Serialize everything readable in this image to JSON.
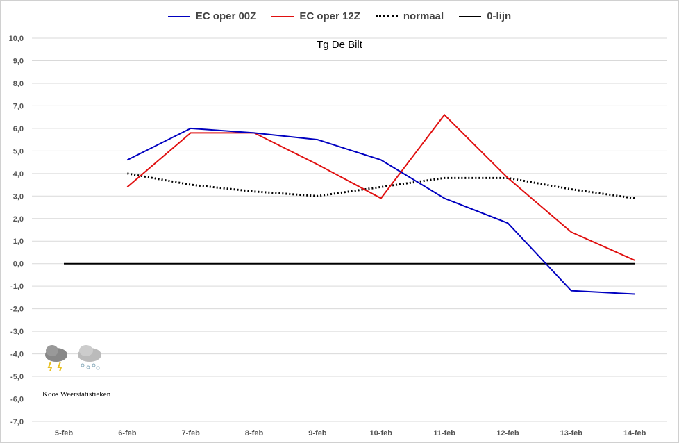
{
  "chart_data": {
    "type": "line",
    "title": "Tg De Bilt",
    "xlabel": "",
    "ylabel": "",
    "categories": [
      "5-feb",
      "6-feb",
      "7-feb",
      "8-feb",
      "9-feb",
      "10-feb",
      "11-feb",
      "12-feb",
      "13-feb",
      "14-feb"
    ],
    "ylim": [
      -7,
      10
    ],
    "yticks": [
      "-7,0",
      "-6,0",
      "-5,0",
      "-4,0",
      "-3,0",
      "-2,0",
      "-1,0",
      "0,0",
      "1,0",
      "2,0",
      "3,0",
      "4,0",
      "5,0",
      "6,0",
      "7,0",
      "8,0",
      "9,0",
      "10,0"
    ],
    "grid": true,
    "legend_position": "top-center",
    "series": [
      {
        "name": "EC oper 00Z",
        "color": "#0000c0",
        "style": "solid",
        "values": [
          null,
          4.6,
          6.0,
          5.8,
          5.5,
          4.6,
          2.9,
          1.8,
          -1.2,
          -1.35
        ]
      },
      {
        "name": "EC oper 12Z",
        "color": "#e01010",
        "style": "solid",
        "values": [
          null,
          3.4,
          5.8,
          5.8,
          4.4,
          2.9,
          6.6,
          3.8,
          1.4,
          0.15
        ]
      },
      {
        "name": "normaal",
        "color": "#000000",
        "style": "dotted",
        "values": [
          null,
          4.0,
          3.5,
          3.2,
          3.0,
          3.4,
          3.8,
          3.8,
          3.3,
          2.9
        ]
      },
      {
        "name": "0-lijn",
        "color": "#000000",
        "style": "solid",
        "values": [
          0,
          0,
          0,
          0,
          0,
          0,
          0,
          0,
          0,
          0
        ]
      }
    ]
  },
  "logo": {
    "text": "Koos Weerstatistieken"
  }
}
